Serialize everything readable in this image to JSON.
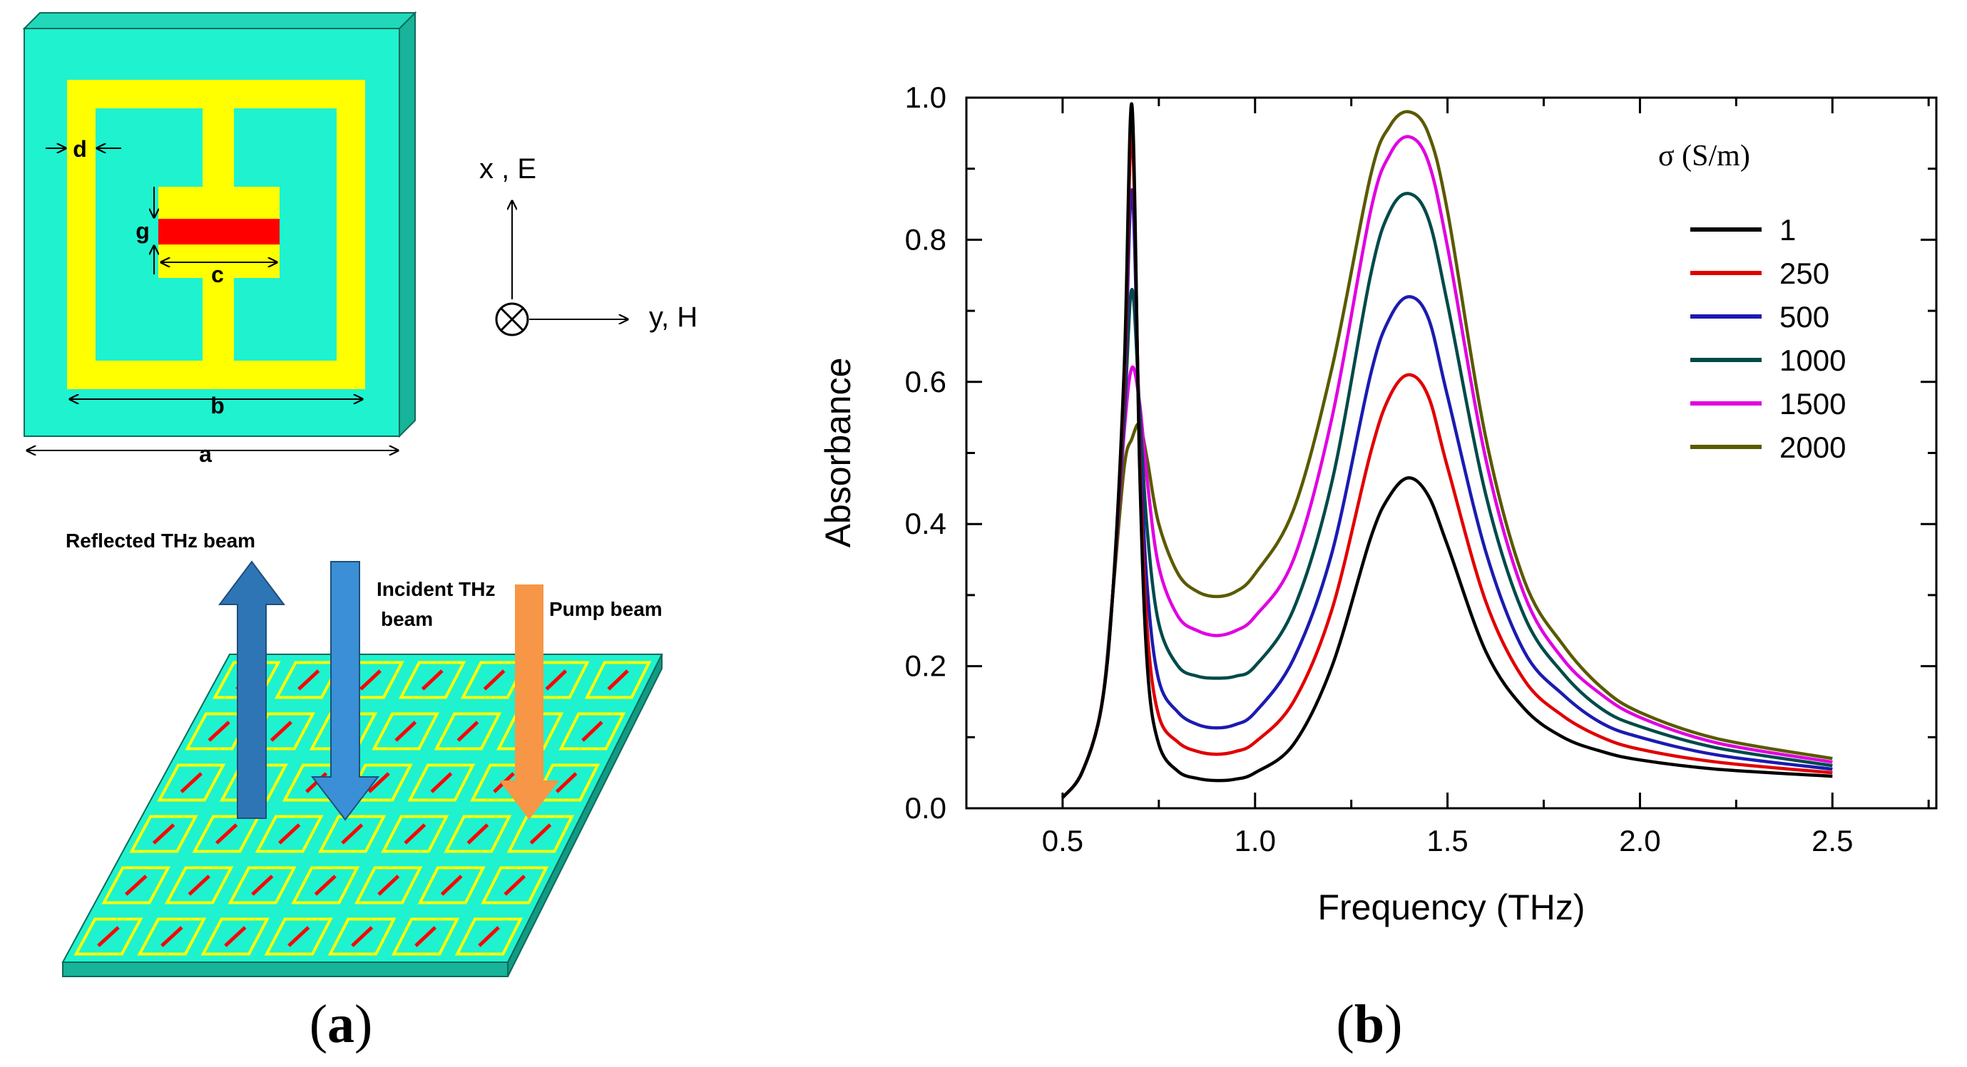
{
  "panel_a": {
    "caption_open": "(",
    "caption_letter": "a",
    "caption_close": ")",
    "unit_cell": {
      "label_a": "a",
      "label_b": "b",
      "label_c": "c",
      "label_d": "d",
      "label_g": "g"
    },
    "axes": {
      "x_label": "x , E",
      "y_label": "y, H"
    },
    "beams": {
      "reflected": "Reflected THz beam",
      "incident_line1": "Incident THz",
      "incident_line2": "beam",
      "pump": "Pump beam"
    },
    "colors": {
      "substrate": "#1FF2CF",
      "substrate_side": "#17B49A",
      "ring": "#FFFF00",
      "gap_fill": "#FF0000",
      "reflected_beam": "#2E75B6",
      "incident_beam": "#3A8FD6",
      "pump_beam": "#F79646"
    }
  },
  "panel_b": {
    "caption_open": "(",
    "caption_letter": "b",
    "caption_close": ")"
  },
  "chart_data": {
    "type": "line",
    "title": "",
    "xlabel": "Frequency (THz)",
    "ylabel": "Absorbance",
    "xlim": [
      0.25,
      2.77
    ],
    "ylim": [
      0.0,
      1.0
    ],
    "x_ticks": [
      "0.5",
      "1.0",
      "1.5",
      "2.0",
      "2.5"
    ],
    "x_tick_values": [
      0.5,
      1.0,
      1.5,
      2.0,
      2.5
    ],
    "y_ticks": [
      "0.0",
      "0.2",
      "0.4",
      "0.6",
      "0.8",
      "1.0"
    ],
    "y_tick_values": [
      0.0,
      0.2,
      0.4,
      0.6,
      0.8,
      1.0
    ],
    "legend_title": "σ (S/m)",
    "legend_position": "top-right",
    "x": [
      0.5,
      0.55,
      0.6,
      0.63,
      0.66,
      0.68,
      0.7,
      0.72,
      0.75,
      0.8,
      0.85,
      0.9,
      0.95,
      1.0,
      1.1,
      1.2,
      1.3,
      1.35,
      1.4,
      1.45,
      1.5,
      1.6,
      1.7,
      1.8,
      1.9,
      2.0,
      2.2,
      2.5
    ],
    "series": [
      {
        "name": "1",
        "color": "#000000",
        "values": [
          0.015,
          0.05,
          0.14,
          0.3,
          0.62,
          0.99,
          0.48,
          0.2,
          0.09,
          0.052,
          0.042,
          0.039,
          0.041,
          0.05,
          0.09,
          0.2,
          0.38,
          0.44,
          0.465,
          0.44,
          0.37,
          0.22,
          0.14,
          0.1,
          0.08,
          0.068,
          0.055,
          0.045
        ]
      },
      {
        "name": "250",
        "color": "#E00000",
        "values": [
          0.015,
          0.05,
          0.14,
          0.3,
          0.6,
          0.95,
          0.5,
          0.25,
          0.13,
          0.093,
          0.08,
          0.076,
          0.08,
          0.093,
          0.15,
          0.28,
          0.5,
          0.58,
          0.61,
          0.58,
          0.48,
          0.29,
          0.18,
          0.13,
          0.1,
          0.083,
          0.065,
          0.05
        ]
      },
      {
        "name": "500",
        "color": "#1B1BB0",
        "values": [
          0.015,
          0.05,
          0.14,
          0.3,
          0.58,
          0.87,
          0.53,
          0.31,
          0.18,
          0.135,
          0.118,
          0.113,
          0.118,
          0.135,
          0.21,
          0.36,
          0.61,
          0.69,
          0.72,
          0.69,
          0.58,
          0.36,
          0.22,
          0.16,
          0.12,
          0.1,
          0.075,
          0.055
        ]
      },
      {
        "name": "1000",
        "color": "#004A4A",
        "values": [
          0.015,
          0.05,
          0.14,
          0.3,
          0.55,
          0.73,
          0.56,
          0.39,
          0.26,
          0.2,
          0.186,
          0.183,
          0.186,
          0.2,
          0.28,
          0.46,
          0.75,
          0.84,
          0.865,
          0.83,
          0.71,
          0.44,
          0.27,
          0.19,
          0.14,
          0.115,
          0.085,
          0.06
        ]
      },
      {
        "name": "1500",
        "color": "#E000E0",
        "values": [
          0.015,
          0.05,
          0.14,
          0.3,
          0.53,
          0.62,
          0.57,
          0.46,
          0.34,
          0.27,
          0.25,
          0.243,
          0.25,
          0.27,
          0.35,
          0.55,
          0.84,
          0.92,
          0.945,
          0.91,
          0.79,
          0.49,
          0.3,
          0.21,
          0.16,
          0.128,
          0.092,
          0.065
        ]
      },
      {
        "name": "2000",
        "color": "#5A5A00",
        "values": [
          0.015,
          0.05,
          0.14,
          0.3,
          0.48,
          0.52,
          0.54,
          0.49,
          0.4,
          0.33,
          0.305,
          0.298,
          0.305,
          0.33,
          0.42,
          0.62,
          0.89,
          0.96,
          0.98,
          0.95,
          0.84,
          0.52,
          0.32,
          0.23,
          0.17,
          0.135,
          0.098,
          0.07
        ]
      }
    ]
  }
}
